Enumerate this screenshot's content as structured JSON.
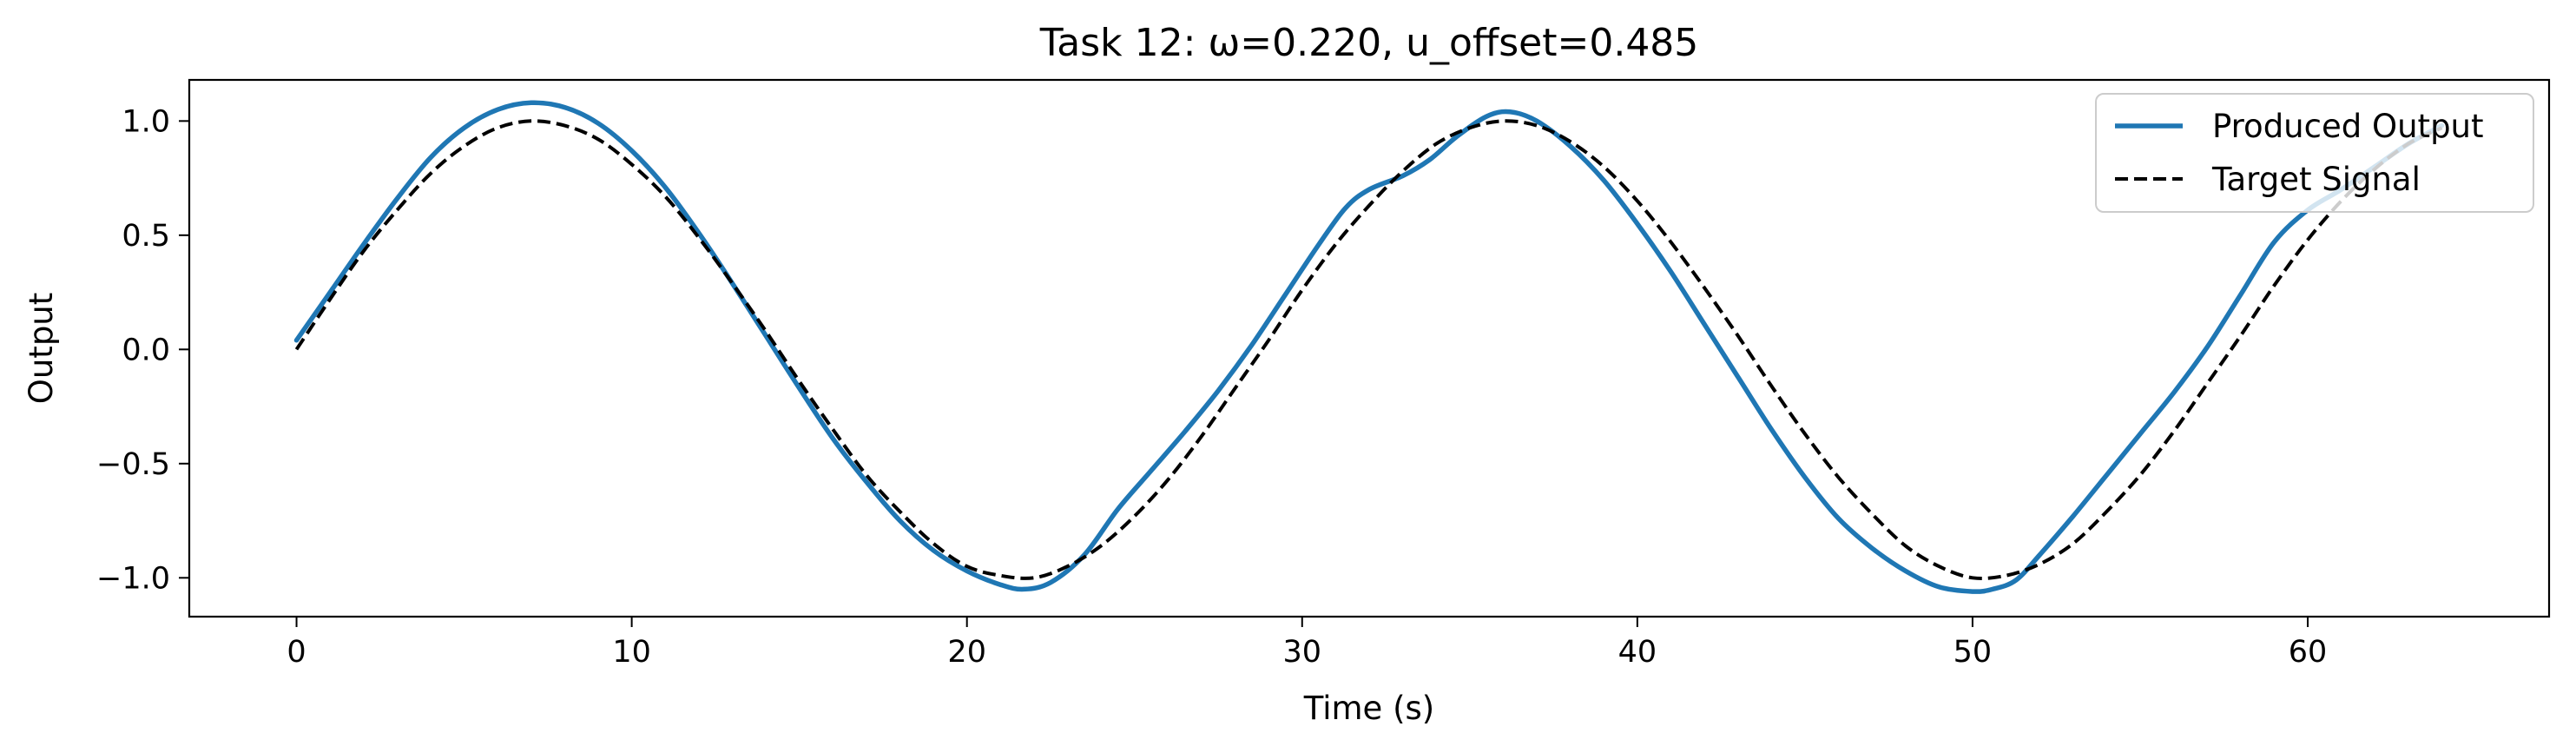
{
  "chart_data": {
    "type": "line",
    "title": "Task 12: ω=0.220, u_offset=0.485",
    "xlabel": "Time (s)",
    "ylabel": "Output",
    "xlim": [
      -3.2,
      67.2
    ],
    "ylim": [
      -1.17,
      1.18
    ],
    "xticks": [
      0,
      10,
      20,
      30,
      40,
      50,
      60
    ],
    "xtick_labels": [
      "0",
      "10",
      "20",
      "30",
      "40",
      "50",
      "60"
    ],
    "yticks": [
      -1.0,
      -0.5,
      0.0,
      0.5,
      1.0
    ],
    "ytick_labels": [
      "−1.0",
      "−0.5",
      "0.0",
      "0.5",
      "1.0"
    ],
    "grid": false,
    "legend_position": "top-right",
    "series": [
      {
        "name": "Produced Output",
        "color": "#1f77b4",
        "style": "solid",
        "x": [
          0,
          1,
          2,
          3,
          4,
          5,
          6,
          7,
          8,
          9,
          10,
          11,
          12,
          13,
          14,
          15,
          16,
          17,
          18,
          19,
          20,
          21,
          21.7,
          22.5,
          23.5,
          24.5,
          25.5,
          26.5,
          27.5,
          28.5,
          29.5,
          30.5,
          31.3,
          32,
          33,
          33.8,
          34.6,
          35.5,
          36.2,
          37,
          38,
          39,
          40,
          41,
          42,
          43,
          44,
          45,
          46,
          47,
          48,
          49,
          50,
          50.6,
          51.3,
          52,
          53,
          54,
          55,
          56,
          57,
          58,
          59,
          60,
          61,
          62,
          63,
          64
        ],
        "y": [
          0.04,
          0.25,
          0.46,
          0.66,
          0.84,
          0.97,
          1.05,
          1.08,
          1.06,
          0.99,
          0.87,
          0.71,
          0.51,
          0.29,
          0.06,
          -0.17,
          -0.39,
          -0.58,
          -0.75,
          -0.88,
          -0.97,
          -1.03,
          -1.05,
          -1.02,
          -0.9,
          -0.7,
          -0.53,
          -0.36,
          -0.18,
          0.02,
          0.24,
          0.46,
          0.62,
          0.7,
          0.76,
          0.83,
          0.93,
          1.02,
          1.04,
          1.0,
          0.89,
          0.74,
          0.55,
          0.34,
          0.11,
          -0.12,
          -0.35,
          -0.56,
          -0.74,
          -0.87,
          -0.97,
          -1.04,
          -1.06,
          -1.05,
          -1.01,
          -0.9,
          -0.73,
          -0.55,
          -0.37,
          -0.19,
          0.01,
          0.24,
          0.47,
          0.61,
          0.7,
          0.8,
          0.9,
          0.98
        ]
      },
      {
        "name": "Target Signal",
        "color": "#000000",
        "style": "dashed",
        "x": [
          0,
          1,
          2,
          3,
          4,
          5,
          6,
          7,
          8,
          9,
          10,
          11,
          12,
          13,
          14,
          15,
          16,
          17,
          18,
          19,
          20,
          21,
          22,
          23,
          24,
          25,
          26,
          27,
          28,
          29,
          30,
          31,
          32,
          33,
          34,
          35,
          36,
          37,
          38,
          39,
          40,
          41,
          42,
          43,
          44,
          45,
          46,
          47,
          48,
          49,
          50,
          51,
          52,
          53,
          54,
          55,
          56,
          57,
          58,
          59,
          60,
          61,
          62,
          63,
          64
        ],
        "y": [
          0.0,
          0.22,
          0.43,
          0.61,
          0.77,
          0.89,
          0.97,
          1.0,
          0.98,
          0.92,
          0.81,
          0.67,
          0.49,
          0.29,
          0.08,
          -0.14,
          -0.35,
          -0.55,
          -0.71,
          -0.85,
          -0.95,
          -0.99,
          -1.0,
          -0.95,
          -0.86,
          -0.73,
          -0.57,
          -0.38,
          -0.17,
          0.04,
          0.26,
          0.46,
          0.63,
          0.78,
          0.9,
          0.97,
          1.0,
          0.98,
          0.91,
          0.8,
          0.65,
          0.47,
          0.27,
          0.06,
          -0.16,
          -0.37,
          -0.56,
          -0.72,
          -0.86,
          -0.95,
          -1.0,
          -0.99,
          -0.94,
          -0.85,
          -0.71,
          -0.55,
          -0.36,
          -0.15,
          0.06,
          0.28,
          0.48,
          0.65,
          0.79,
          0.9,
          0.97
        ]
      }
    ]
  }
}
